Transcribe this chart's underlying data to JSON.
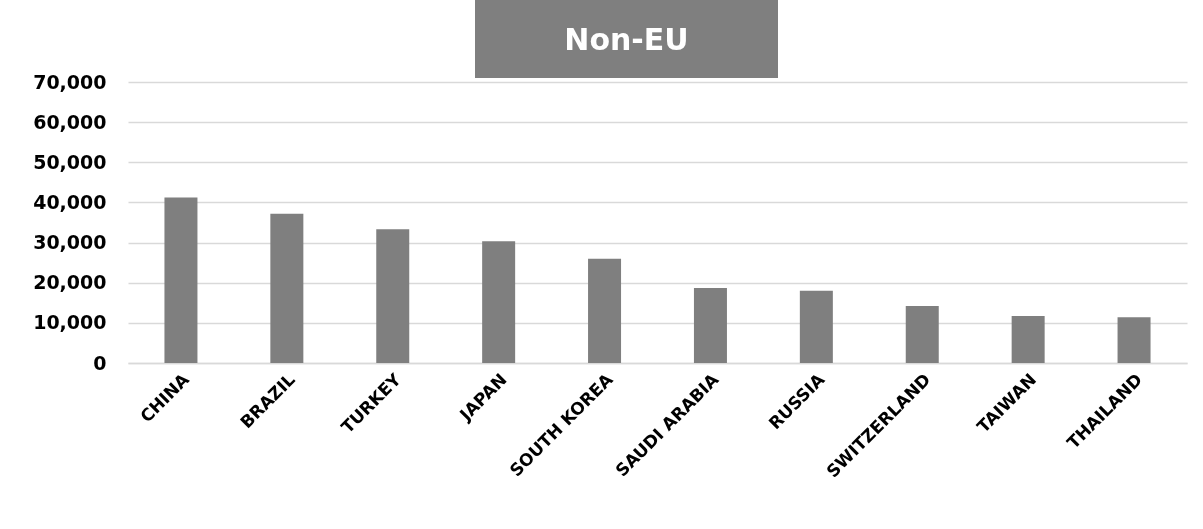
{
  "chart_data": {
    "type": "bar",
    "title": "Non-EU",
    "categories": [
      "CHINA",
      "BRAZIL",
      "TURKEY",
      "JAPAN",
      "SOUTH KOREA",
      "SAUDI ARABIA",
      "RUSSIA",
      "SWITZERLAND",
      "TAIWAN",
      "THAILAND"
    ],
    "values": [
      41200,
      37200,
      33300,
      30300,
      26000,
      18700,
      18000,
      14200,
      11700,
      11400
    ],
    "color": "#7f7f7f",
    "ylim": [
      0,
      70000
    ],
    "yticks": [
      0,
      {
        "value": 10000,
        "label": "10,000"
      },
      {
        "value": 20000,
        "label": "20,000"
      },
      {
        "value": 30000,
        "label": "30,000"
      },
      {
        "value": 40000,
        "label": "40,000"
      },
      {
        "value": 50000,
        "label": "50,000"
      },
      {
        "value": 60000,
        "label": "60,000"
      },
      {
        "value": 70000,
        "label": "70,000"
      }
    ],
    "grid": true
  }
}
